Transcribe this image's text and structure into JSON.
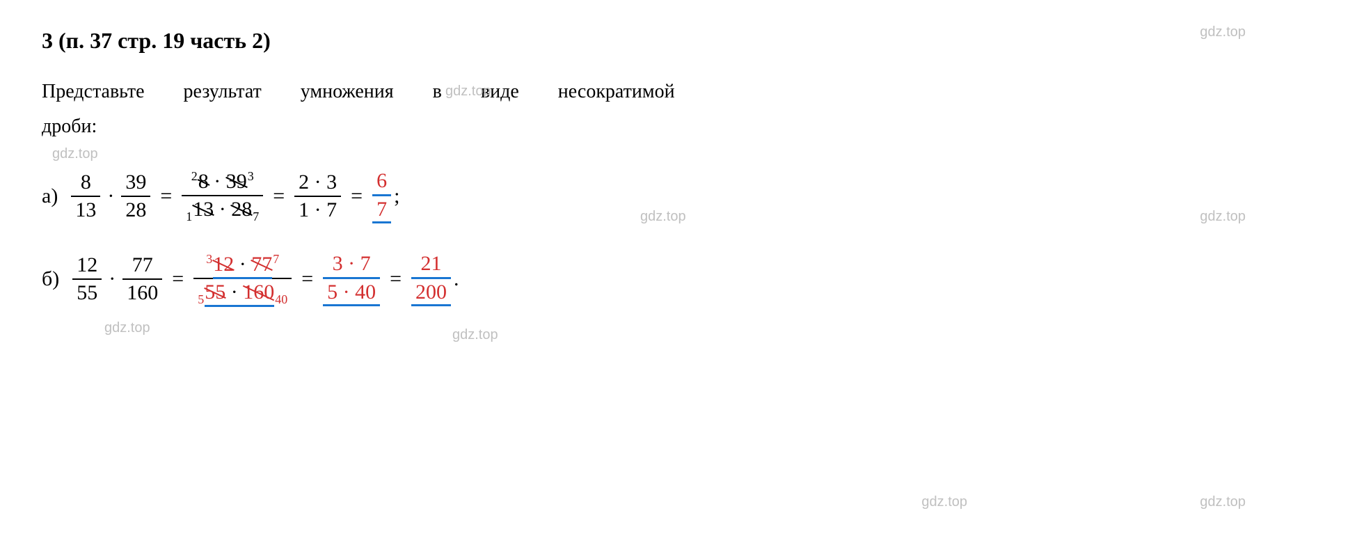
{
  "heading": "3 (п. 37 стр. 19 часть 2)",
  "problem_text_line1": "Представьте",
  "problem_text_line2": "результат",
  "problem_text_line3": "умножения",
  "problem_text_line4": "в",
  "problem_text_line5": "виде",
  "problem_text_line6": "несократимой",
  "problem_text_line7": "дроби:",
  "watermark": "gdz.top",
  "part_a": {
    "label": "а)",
    "f1_num": "8",
    "f1_den": "13",
    "f2_num": "39",
    "f2_den": "28",
    "step1_num_sup_l": "2",
    "step1_num_v1": "8",
    "step1_num_v2": "39",
    "step1_num_sup_r": "3",
    "step1_den_sub_l": "1",
    "step1_den_v1": "13",
    "step1_den_v2": "28",
    "step1_den_sub_r": "7",
    "step2_num": "2 · 3",
    "step2_den": "1 · 7",
    "result_num": "6",
    "result_den": "7",
    "end": ";"
  },
  "part_b": {
    "label": "б)",
    "f1_num": "12",
    "f1_den": "55",
    "f2_num": "77",
    "f2_den": "160",
    "step1_num_sup_l": "3",
    "step1_num_v1": "12",
    "step1_num_v2": "77",
    "step1_num_sup_r": "7",
    "step1_den_sub_l": "5",
    "step1_den_v1": "55",
    "step1_den_v2": "160",
    "step1_den_sub_r": "40",
    "step2_num": "3 · 7",
    "step2_den": "5 · 40",
    "result_num": "21",
    "result_den": "200",
    "end": "."
  },
  "colors": {
    "red": "#d32f2f",
    "blue": "#1976d2",
    "black": "#000000",
    "watermark": "#c0c0c0",
    "background": "#ffffff"
  }
}
